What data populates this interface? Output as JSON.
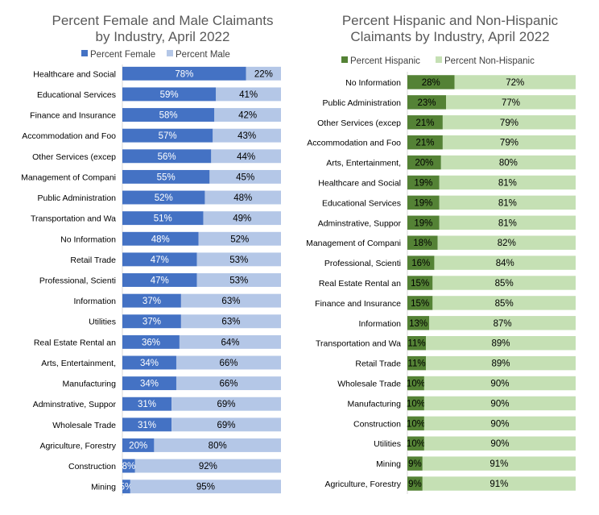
{
  "chart_data": [
    {
      "type": "bar",
      "orientation": "horizontal",
      "stacked": "percent",
      "title_lines": [
        "Percent Female and Male Claimants",
        "by Industry, April 2022"
      ],
      "legend_position": "top",
      "categories": [
        "Healthcare and Social",
        "Educational Services",
        "Finance and Insurance",
        "Accommodation and Foo",
        "Other Services (excep",
        "Management of Compani",
        "Public Administration",
        "Transportation and Wa",
        "No Information",
        "Retail Trade",
        "Professional, Scienti",
        "Information",
        "Utilities",
        "Real Estate Rental an",
        "Arts, Entertainment,",
        "Manufacturing",
        "Adminstrative, Suppor",
        "Wholesale Trade",
        "Agriculture, Forestry",
        "Construction",
        "Mining"
      ],
      "series": [
        {
          "name": "Percent Female",
          "color": "#4472c4",
          "label_color": "#ffffff",
          "values": [
            78,
            59,
            58,
            57,
            56,
            55,
            52,
            51,
            48,
            47,
            47,
            37,
            37,
            36,
            34,
            34,
            31,
            31,
            20,
            8,
            5
          ],
          "labels": [
            "78%",
            "59%",
            "58%",
            "57%",
            "56%",
            "55%",
            "52%",
            "51%",
            "48%",
            "47%",
            "47%",
            "37%",
            "37%",
            "36%",
            "34%",
            "34%",
            "31%",
            "31%",
            "20%",
            "8%",
            "5%"
          ]
        },
        {
          "name": "Percent Male",
          "color": "#b4c7e7",
          "label_color": "#000000",
          "values": [
            22,
            41,
            42,
            43,
            44,
            45,
            48,
            49,
            52,
            53,
            53,
            63,
            63,
            64,
            66,
            66,
            69,
            69,
            80,
            92,
            95
          ],
          "labels": [
            "22%",
            "41%",
            "42%",
            "43%",
            "44%",
            "45%",
            "48%",
            "49%",
            "52%",
            "53%",
            "53%",
            "63%",
            "63%",
            "64%",
            "66%",
            "66%",
            "69%",
            "69%",
            "80%",
            "92%",
            "95%"
          ]
        }
      ]
    },
    {
      "type": "bar",
      "orientation": "horizontal",
      "stacked": "percent",
      "title_lines": [
        "Percent Hispanic and Non-Hispanic",
        "Claimants by Industry, April 2022"
      ],
      "legend_position": "top",
      "categories": [
        "No Information",
        "Public Administration",
        "Other Services (excep",
        "Accommodation and Foo",
        "Arts, Entertainment,",
        "Healthcare and Social",
        "Educational Services",
        "Adminstrative, Suppor",
        "Management of Compani",
        "Professional, Scienti",
        "Real Estate Rental an",
        "Finance and Insurance",
        "Information",
        "Transportation and Wa",
        "Retail Trade",
        "Wholesale Trade",
        "Manufacturing",
        "Construction",
        "Utilities",
        "Mining",
        "Agriculture, Forestry"
      ],
      "series": [
        {
          "name": "Percent Hispanic",
          "color": "#548235",
          "label_color": "#000000",
          "values": [
            28,
            23,
            21,
            21,
            20,
            19,
            19,
            19,
            18,
            16,
            15,
            15,
            13,
            11,
            11,
            10,
            10,
            10,
            10,
            9,
            9
          ],
          "labels": [
            "28%",
            "23%",
            "21%",
            "21%",
            "20%",
            "19%",
            "19%",
            "19%",
            "18%",
            "16%",
            "15%",
            "15%",
            "13%",
            "11%",
            "11%",
            "10%",
            "10%",
            "10%",
            "10%",
            "9%",
            "9%"
          ]
        },
        {
          "name": "Percent Non-Hispanic",
          "color": "#c5e0b4",
          "label_color": "#000000",
          "values": [
            72,
            77,
            79,
            79,
            80,
            81,
            81,
            81,
            82,
            84,
            85,
            85,
            87,
            89,
            89,
            90,
            90,
            90,
            90,
            91,
            91
          ],
          "labels": [
            "72%",
            "77%",
            "79%",
            "79%",
            "80%",
            "81%",
            "81%",
            "81%",
            "82%",
            "84%",
            "85%",
            "85%",
            "87%",
            "89%",
            "89%",
            "90%",
            "90%",
            "90%",
            "90%",
            "91%",
            "91%"
          ]
        }
      ]
    }
  ]
}
